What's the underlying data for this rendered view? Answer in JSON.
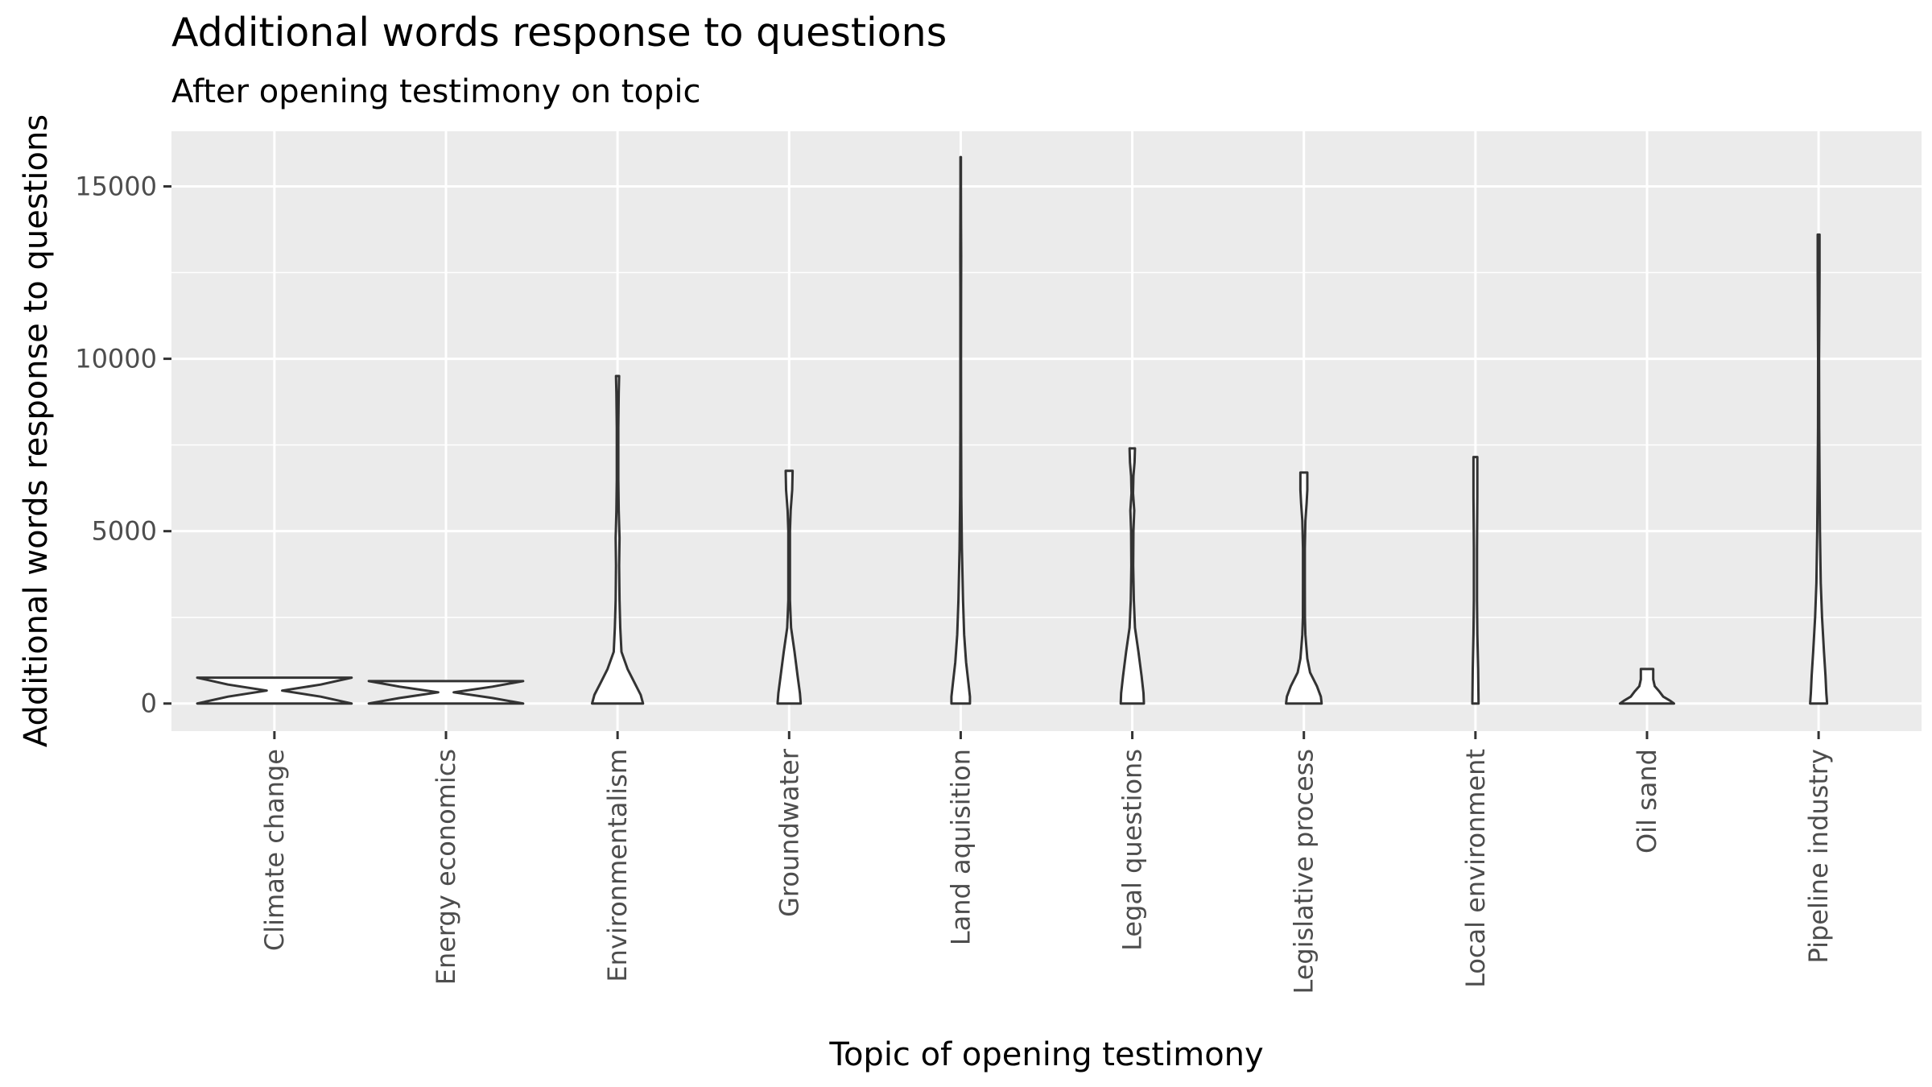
{
  "chart_data": {
    "type": "violin",
    "title": "Additional words response to questions",
    "subtitle": "After opening testimony on topic",
    "xlabel": "Topic of opening testimony",
    "ylabel": "Additional words response to questions",
    "ylim": [
      -800,
      16600
    ],
    "yticks": [
      0,
      5000,
      10000,
      15000
    ],
    "grid": true,
    "legend": "none",
    "colors": {
      "panel": "#ebebeb",
      "grid": "#ffffff",
      "outline": "#333333",
      "fill": "#ffffff",
      "tick_text": "#4d4d4d"
    },
    "categories": [
      "Climate change",
      "Energy economics",
      "Environmentalism",
      "Groundwater",
      "Land aquisition",
      "Legal questions",
      "Legislative process",
      "Local environment",
      "Oil sand",
      "Pipeline industry"
    ],
    "violins": [
      {
        "category": "Climate change",
        "ymin": 0,
        "ymax": 750,
        "profile": [
          [
            0,
            1
          ],
          [
            200,
            0.6
          ],
          [
            375,
            0.1
          ],
          [
            550,
            0.6
          ],
          [
            750,
            1
          ]
        ]
      },
      {
        "category": "Energy economics",
        "ymin": 0,
        "ymax": 650,
        "profile": [
          [
            0,
            1
          ],
          [
            160,
            0.6
          ],
          [
            325,
            0.1
          ],
          [
            490,
            0.6
          ],
          [
            650,
            1
          ]
        ]
      },
      {
        "category": "Environmentalism",
        "ymin": 0,
        "ymax": 9500,
        "profile": [
          [
            0,
            0.33
          ],
          [
            250,
            0.3
          ],
          [
            600,
            0.22
          ],
          [
            1000,
            0.13
          ],
          [
            1500,
            0.05
          ],
          [
            2200,
            0.035
          ],
          [
            3000,
            0.025
          ],
          [
            4000,
            0.02
          ],
          [
            4800,
            0.025
          ],
          [
            5600,
            0.015
          ],
          [
            6500,
            0.01
          ],
          [
            8000,
            0.01
          ],
          [
            9000,
            0.015
          ],
          [
            9500,
            0.02
          ]
        ]
      },
      {
        "category": "Groundwater",
        "ymin": 0,
        "ymax": 6750,
        "profile": [
          [
            0,
            0.15
          ],
          [
            300,
            0.14
          ],
          [
            800,
            0.11
          ],
          [
            1500,
            0.07
          ],
          [
            2200,
            0.025
          ],
          [
            3000,
            0.01
          ],
          [
            4000,
            0.01
          ],
          [
            5000,
            0.01
          ],
          [
            5600,
            0.02
          ],
          [
            6200,
            0.04
          ],
          [
            6750,
            0.045
          ]
        ]
      },
      {
        "category": "Land aquisition",
        "ymin": 0,
        "ymax": 15850,
        "profile": [
          [
            0,
            0.12
          ],
          [
            200,
            0.12
          ],
          [
            600,
            0.1
          ],
          [
            1200,
            0.07
          ],
          [
            2000,
            0.045
          ],
          [
            3000,
            0.03
          ],
          [
            4500,
            0.015
          ],
          [
            6000,
            0.008
          ],
          [
            8000,
            0.005
          ],
          [
            10000,
            0.004
          ],
          [
            12000,
            0.005
          ],
          [
            13000,
            0.006
          ],
          [
            14000,
            0.004
          ],
          [
            15000,
            0.003
          ],
          [
            15850,
            0.003
          ]
        ]
      },
      {
        "category": "Legal questions",
        "ymin": 0,
        "ymax": 7400,
        "profile": [
          [
            0,
            0.15
          ],
          [
            300,
            0.145
          ],
          [
            800,
            0.12
          ],
          [
            1500,
            0.08
          ],
          [
            2200,
            0.035
          ],
          [
            3000,
            0.02
          ],
          [
            4000,
            0.012
          ],
          [
            5000,
            0.015
          ],
          [
            5600,
            0.025
          ],
          [
            6100,
            0.01
          ],
          [
            6600,
            0.015
          ],
          [
            7000,
            0.03
          ],
          [
            7400,
            0.035
          ]
        ]
      },
      {
        "category": "Legislative process",
        "ymin": 0,
        "ymax": 6700,
        "profile": [
          [
            0,
            0.23
          ],
          [
            200,
            0.22
          ],
          [
            500,
            0.17
          ],
          [
            900,
            0.08
          ],
          [
            1300,
            0.045
          ],
          [
            1700,
            0.03
          ],
          [
            2000,
            0.02
          ],
          [
            2500,
            0.013
          ],
          [
            3500,
            0.012
          ],
          [
            4500,
            0.012
          ],
          [
            5300,
            0.02
          ],
          [
            5800,
            0.035
          ],
          [
            6200,
            0.045
          ],
          [
            6700,
            0.045
          ]
        ]
      },
      {
        "category": "Local environment",
        "ymin": 0,
        "ymax": 7150,
        "profile": [
          [
            0,
            0.04
          ],
          [
            1000,
            0.035
          ],
          [
            2000,
            0.025
          ],
          [
            3000,
            0.02
          ],
          [
            4500,
            0.02
          ],
          [
            6000,
            0.025
          ],
          [
            7150,
            0.025
          ]
        ]
      },
      {
        "category": "Oil sand",
        "ymin": 0,
        "ymax": 1000,
        "profile": [
          [
            0,
            0.35
          ],
          [
            80,
            0.3
          ],
          [
            200,
            0.21
          ],
          [
            350,
            0.16
          ],
          [
            500,
            0.1
          ],
          [
            700,
            0.08
          ],
          [
            850,
            0.08
          ],
          [
            1000,
            0.08
          ]
        ]
      },
      {
        "category": "Pipeline industry",
        "ymin": 0,
        "ymax": 13600,
        "profile": [
          [
            0,
            0.11
          ],
          [
            300,
            0.1
          ],
          [
            800,
            0.09
          ],
          [
            1500,
            0.07
          ],
          [
            2500,
            0.045
          ],
          [
            3500,
            0.028
          ],
          [
            5000,
            0.018
          ],
          [
            6500,
            0.012
          ],
          [
            8000,
            0.008
          ],
          [
            10000,
            0.006
          ],
          [
            11500,
            0.01
          ],
          [
            12500,
            0.012
          ],
          [
            13600,
            0.012
          ]
        ]
      }
    ]
  }
}
